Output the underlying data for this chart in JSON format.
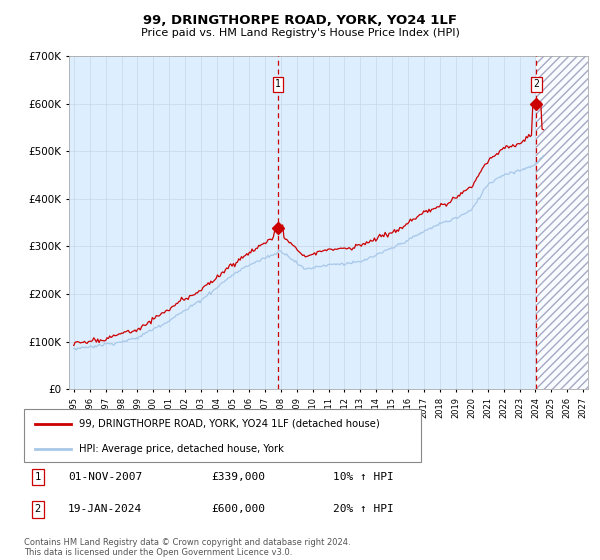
{
  "title": "99, DRINGTHORPE ROAD, YORK, YO24 1LF",
  "subtitle": "Price paid vs. HM Land Registry's House Price Index (HPI)",
  "ylim": [
    0,
    700000
  ],
  "yticks": [
    0,
    100000,
    200000,
    300000,
    400000,
    500000,
    600000,
    700000
  ],
  "ytick_labels": [
    "£0",
    "£100K",
    "£200K",
    "£300K",
    "£400K",
    "£500K",
    "£600K",
    "£700K"
  ],
  "x_start_year": 1995,
  "x_end_year": 2027,
  "hpi_color": "#a8c8e8",
  "price_color": "#cc0000",
  "bg_color": "#ddeeff",
  "grid_color": "#c8d8e8",
  "sale1_date": 2007.83,
  "sale1_price": 339000,
  "sale2_date": 2024.05,
  "sale2_price": 600000,
  "legend_line1": "99, DRINGTHORPE ROAD, YORK, YO24 1LF (detached house)",
  "legend_line2": "HPI: Average price, detached house, York",
  "note1_label": "1",
  "note1_date": "01-NOV-2007",
  "note1_price": "£339,000",
  "note1_hpi": "10% ↑ HPI",
  "note2_label": "2",
  "note2_date": "19-JAN-2024",
  "note2_price": "£600,000",
  "note2_hpi": "20% ↑ HPI",
  "footer": "Contains HM Land Registry data © Crown copyright and database right 2024.\nThis data is licensed under the Open Government Licence v3.0."
}
